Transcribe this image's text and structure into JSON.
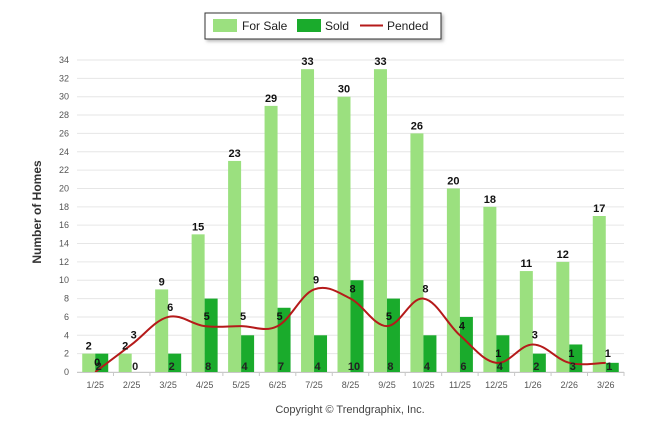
{
  "chart_data": {
    "type": "bar",
    "categories": [
      "1/25",
      "2/25",
      "3/25",
      "4/25",
      "5/25",
      "6/25",
      "7/25",
      "8/25",
      "9/25",
      "10/25",
      "11/25",
      "12/25",
      "1/26",
      "2/26",
      "3/26"
    ],
    "series": [
      {
        "name": "For Sale",
        "type": "bar",
        "color": "#9be07f",
        "values": [
          2,
          2,
          9,
          15,
          23,
          29,
          33,
          30,
          33,
          26,
          20,
          18,
          11,
          12,
          17
        ]
      },
      {
        "name": "Sold",
        "type": "bar",
        "color": "#1aab2c",
        "values": [
          2,
          0,
          2,
          8,
          4,
          7,
          4,
          10,
          8,
          4,
          6,
          4,
          2,
          3,
          1
        ]
      },
      {
        "name": "Pended",
        "type": "line",
        "color": "#b51a1a",
        "values": [
          0,
          3,
          6,
          5,
          5,
          5,
          9,
          8,
          5,
          8,
          4,
          1,
          3,
          1,
          1
        ]
      }
    ],
    "xlabel": "",
    "ylabel": "Number of Homes",
    "ylim": [
      0,
      34
    ],
    "yticks": [
      0,
      2,
      4,
      6,
      8,
      10,
      12,
      14,
      16,
      18,
      20,
      22,
      24,
      26,
      28,
      30,
      32,
      34
    ],
    "grid": true,
    "legend": "top-center"
  },
  "footer": {
    "credit": "Copyright © Trendgraphix, Inc."
  }
}
